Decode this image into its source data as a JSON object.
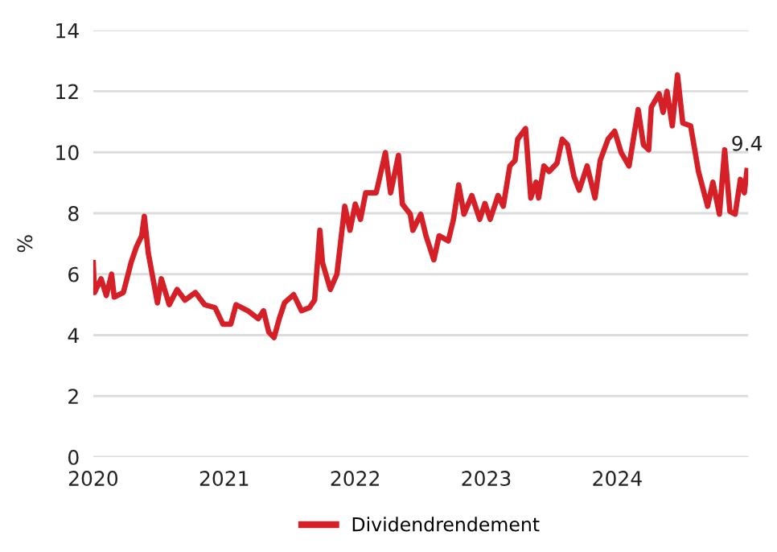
{
  "chart_data": {
    "type": "line",
    "ylabel": "%",
    "xlim": [
      2020,
      2025
    ],
    "xticks": [
      2020,
      2021,
      2022,
      2023,
      2024
    ],
    "ylim": [
      0,
      14
    ],
    "yticks": [
      0,
      2,
      4,
      6,
      8,
      10,
      12,
      14
    ],
    "grid": "y",
    "legend": "bottom",
    "annotations": [
      {
        "text": "9.4",
        "x": 2024.99,
        "y": 9.4
      }
    ],
    "series": [
      {
        "name": "Dividendrendement",
        "color": "#d62027",
        "x": [
          2020.0,
          2020.01,
          2020.06,
          2020.1,
          2020.14,
          2020.16,
          2020.23,
          2020.29,
          2020.33,
          2020.37,
          2020.39,
          2020.42,
          2020.45,
          2020.49,
          2020.52,
          2020.58,
          2020.64,
          2020.7,
          2020.78,
          2020.85,
          2020.93,
          2020.99,
          2021.05,
          2021.09,
          2021.18,
          2021.26,
          2021.3,
          2021.34,
          2021.38,
          2021.42,
          2021.46,
          2021.53,
          2021.59,
          2021.65,
          2021.69,
          2021.73,
          2021.75,
          2021.81,
          2021.86,
          2021.92,
          2021.96,
          2022.0,
          2022.04,
          2022.08,
          2022.16,
          2022.23,
          2022.27,
          2022.33,
          2022.36,
          2022.42,
          2022.44,
          2022.5,
          2022.54,
          2022.6,
          2022.64,
          2022.71,
          2022.75,
          2022.79,
          2022.83,
          2022.89,
          2022.95,
          2022.99,
          2023.03,
          2023.09,
          2023.13,
          2023.18,
          2023.22,
          2023.24,
          2023.3,
          2023.34,
          2023.38,
          2023.4,
          2023.44,
          2023.48,
          2023.54,
          2023.58,
          2023.62,
          2023.67,
          2023.71,
          2023.77,
          2023.83,
          2023.87,
          2023.93,
          2023.98,
          2024.03,
          2024.09,
          2024.16,
          2024.2,
          2024.24,
          2024.26,
          2024.32,
          2024.35,
          2024.38,
          2024.42,
          2024.46,
          2024.5,
          2024.56,
          2024.62,
          2024.69,
          2024.73,
          2024.78,
          2024.82,
          2024.86,
          2024.9,
          2024.94,
          2024.97,
          2024.99
        ],
        "values": [
          6.38,
          5.4,
          5.85,
          5.3,
          6.0,
          5.25,
          5.4,
          6.4,
          6.9,
          7.26,
          7.9,
          6.7,
          6.0,
          5.06,
          5.85,
          5.0,
          5.5,
          5.15,
          5.4,
          5.0,
          4.9,
          4.36,
          4.36,
          5.0,
          4.8,
          4.54,
          4.8,
          4.1,
          3.92,
          4.54,
          5.06,
          5.33,
          4.8,
          4.9,
          5.15,
          7.44,
          6.38,
          5.5,
          6.0,
          8.23,
          7.44,
          8.3,
          7.8,
          8.67,
          8.67,
          9.99,
          8.67,
          9.9,
          8.3,
          7.97,
          7.44,
          7.97,
          7.26,
          6.47,
          7.26,
          7.09,
          7.8,
          8.93,
          7.97,
          8.58,
          7.8,
          8.32,
          7.8,
          8.58,
          8.23,
          9.55,
          9.73,
          10.43,
          10.78,
          8.5,
          9.02,
          8.5,
          9.55,
          9.37,
          9.64,
          10.43,
          10.25,
          9.2,
          8.76,
          9.55,
          8.5,
          9.73,
          10.43,
          10.69,
          9.99,
          9.55,
          11.4,
          10.25,
          10.08,
          11.48,
          11.92,
          11.31,
          12.0,
          10.87,
          12.54,
          10.96,
          10.87,
          9.37,
          8.23,
          9.02,
          7.97,
          10.08,
          8.06,
          7.97,
          9.11,
          8.67,
          9.4
        ]
      }
    ]
  }
}
